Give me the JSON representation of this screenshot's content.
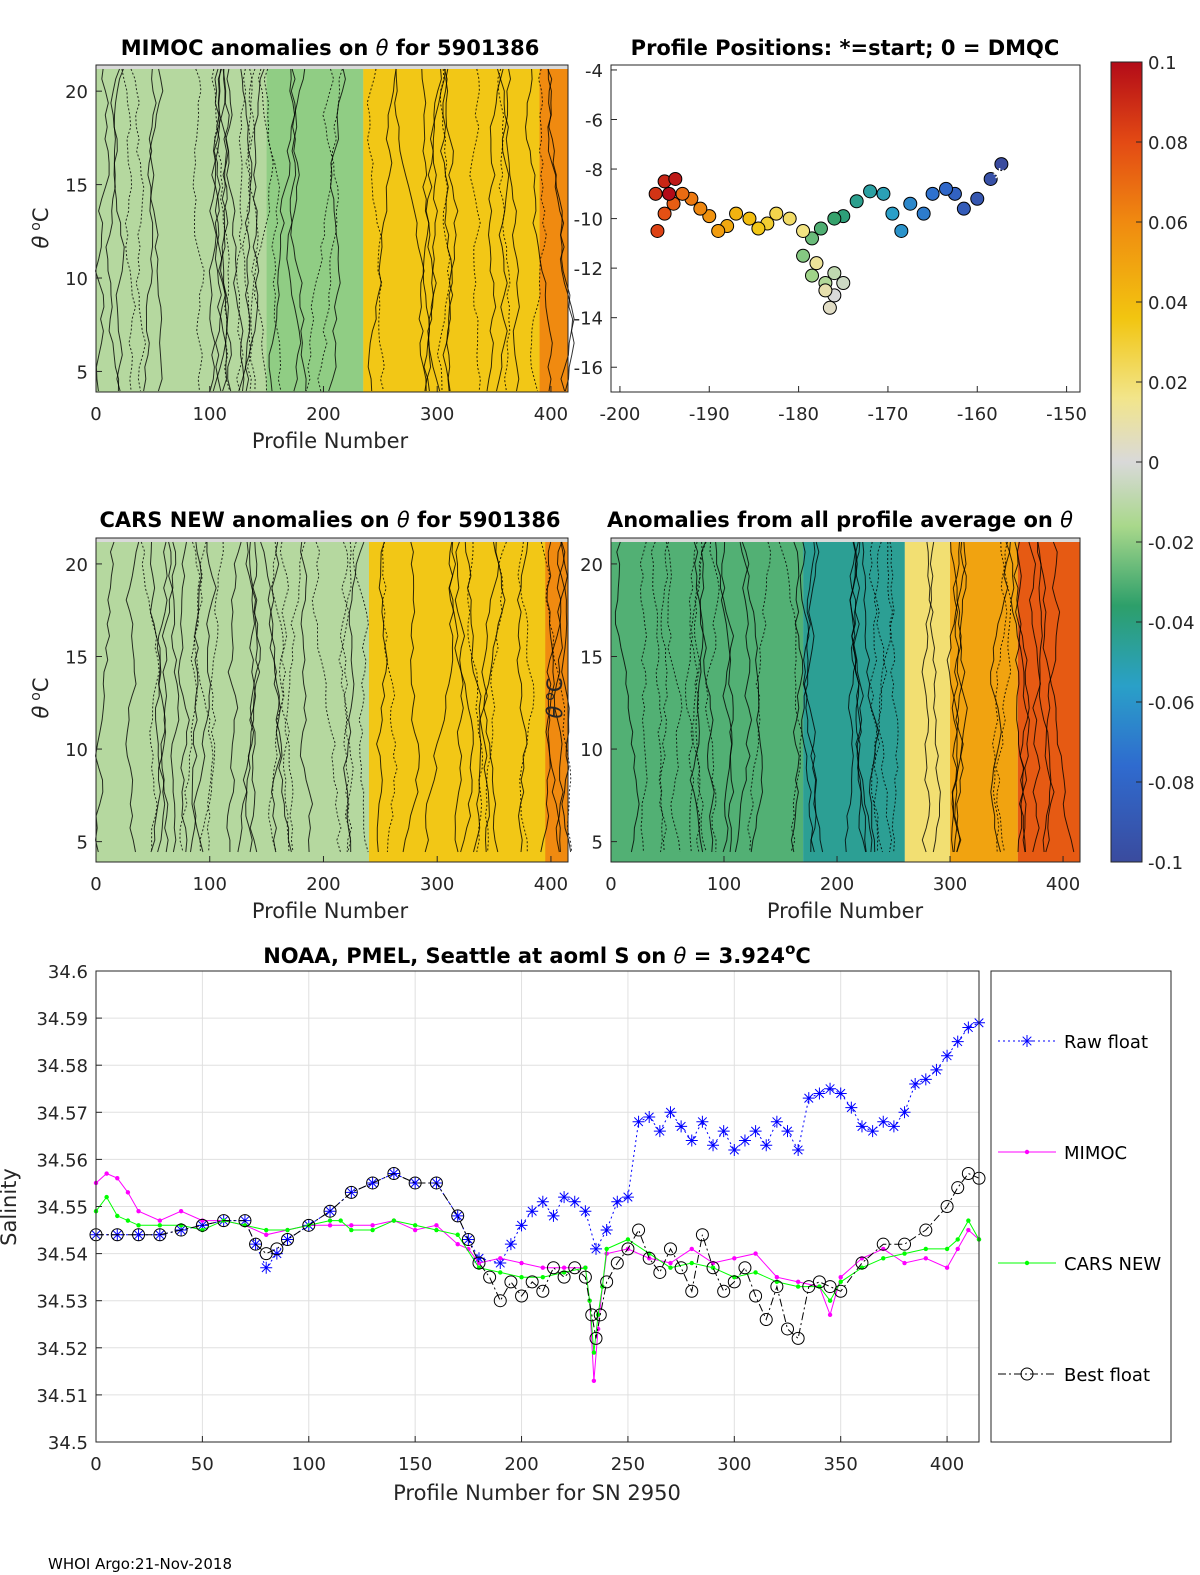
{
  "chart_data": [
    {
      "type": "heatmap",
      "id": "mimoc",
      "title_prefix": "MIMOC anomalies on ",
      "title_theta": "θ",
      "title_suffix": "  for 5901386",
      "xlabel": "Profile Number",
      "ylabel_sym": "θ",
      "ylabel_unit": "C",
      "ylabel_sup": "o",
      "xticks": [
        "0",
        "100",
        "200",
        "300",
        "400"
      ],
      "yticks": [
        "5",
        "10",
        "15",
        "20"
      ],
      "x_tick_values": [
        0,
        100,
        200,
        300,
        400
      ],
      "y_tick_values": [
        5,
        10,
        15,
        20
      ],
      "xlim": [
        0,
        415
      ],
      "ylim": [
        3.9,
        21.4
      ],
      "bands": [
        {
          "x0": 0,
          "x1": 235,
          "v": -0.012
        },
        {
          "x0": 150,
          "x1": 235,
          "v": -0.02
        },
        {
          "x0": 235,
          "x1": 415,
          "v": 0.035
        },
        {
          "x0": 390,
          "x1": 415,
          "v": 0.06
        }
      ]
    },
    {
      "type": "scatter",
      "id": "positions",
      "title": "Profile Positions: *=start; 0 = DMQC",
      "xticks": [
        "-200",
        "-190",
        "-180",
        "-170",
        "-160",
        "-150"
      ],
      "yticks": [
        "-4",
        "-6",
        "-8",
        "-10",
        "-12",
        "-14",
        "-16"
      ],
      "x_tick_values": [
        -200,
        -190,
        -180,
        -170,
        -160,
        -150
      ],
      "y_tick_values": [
        -4,
        -6,
        -8,
        -10,
        -12,
        -14,
        -16
      ],
      "xlim": [
        -201,
        -148.5
      ],
      "ylim": [
        -17,
        -3.8
      ],
      "start": {
        "lon": -157.5,
        "lat": -8.2
      },
      "track": [
        {
          "lon": -157.3,
          "lat": -7.8
        },
        {
          "lon": -158.5,
          "lat": -8.4
        },
        {
          "lon": -160,
          "lat": -9.2
        },
        {
          "lon": -161.5,
          "lat": -9.6
        },
        {
          "lon": -162.5,
          "lat": -9.0
        },
        {
          "lon": -163.5,
          "lat": -8.8
        },
        {
          "lon": -165,
          "lat": -9.0
        },
        {
          "lon": -166,
          "lat": -9.8
        },
        {
          "lon": -167.5,
          "lat": -9.4
        },
        {
          "lon": -168.5,
          "lat": -10.5
        },
        {
          "lon": -169.5,
          "lat": -9.8
        },
        {
          "lon": -170.5,
          "lat": -9.0
        },
        {
          "lon": -172,
          "lat": -8.9
        },
        {
          "lon": -173.5,
          "lat": -9.3
        },
        {
          "lon": -175,
          "lat": -9.9
        },
        {
          "lon": -176,
          "lat": -10.0
        },
        {
          "lon": -177.5,
          "lat": -10.4
        },
        {
          "lon": -178.5,
          "lat": -10.8
        },
        {
          "lon": -179.5,
          "lat": -11.5
        },
        {
          "lon": -178.5,
          "lat": -12.3
        },
        {
          "lon": -177,
          "lat": -12.6
        },
        {
          "lon": -176,
          "lat": -12.2
        },
        {
          "lon": -175,
          "lat": -12.6
        },
        {
          "lon": -176,
          "lat": -13.1
        },
        {
          "lon": -176.5,
          "lat": -13.6
        },
        {
          "lon": -177,
          "lat": -12.9
        },
        {
          "lon": -178,
          "lat": -11.8
        },
        {
          "lon": -179.5,
          "lat": -10.5
        },
        {
          "lon": -181,
          "lat": -10.0
        },
        {
          "lon": -182.5,
          "lat": -9.8
        },
        {
          "lon": -183.5,
          "lat": -10.2
        },
        {
          "lon": -184.5,
          "lat": -10.4
        },
        {
          "lon": -185.5,
          "lat": -10.0
        },
        {
          "lon": -187,
          "lat": -9.8
        },
        {
          "lon": -188,
          "lat": -10.3
        },
        {
          "lon": -189,
          "lat": -10.5
        },
        {
          "lon": -190,
          "lat": -9.9
        },
        {
          "lon": -191,
          "lat": -9.6
        },
        {
          "lon": -192,
          "lat": -9.2
        },
        {
          "lon": -193,
          "lat": -9.0
        },
        {
          "lon": -194,
          "lat": -9.4
        },
        {
          "lon": -195,
          "lat": -9.8
        },
        {
          "lon": -195.8,
          "lat": -10.5
        },
        {
          "lon": -196,
          "lat": -9.0
        },
        {
          "lon": -195,
          "lat": -8.5
        },
        {
          "lon": -193.8,
          "lat": -8.4
        },
        {
          "lon": -194.5,
          "lat": -9.0
        }
      ]
    },
    {
      "type": "heatmap",
      "id": "cars",
      "title_prefix": "CARS NEW anomalies on ",
      "title_theta": "θ",
      "title_suffix": " for 5901386",
      "xlabel": "Profile Number",
      "ylabel_sym": "θ",
      "ylabel_unit": "C",
      "ylabel_sup": "o",
      "xticks": [
        "0",
        "100",
        "200",
        "300",
        "400"
      ],
      "yticks": [
        "5",
        "10",
        "15",
        "20"
      ],
      "x_tick_values": [
        0,
        100,
        200,
        300,
        400
      ],
      "y_tick_values": [
        5,
        10,
        15,
        20
      ],
      "xlim": [
        0,
        415
      ],
      "ylim": [
        3.9,
        21.4
      ],
      "bands": [
        {
          "x0": 0,
          "x1": 240,
          "v": -0.012
        },
        {
          "x0": 240,
          "x1": 415,
          "v": 0.035
        },
        {
          "x0": 395,
          "x1": 415,
          "v": 0.06
        }
      ]
    },
    {
      "type": "heatmap",
      "id": "avg",
      "title_prefix": "Anomalies from all profile average on ",
      "title_theta": "θ",
      "title_suffix": "",
      "xlabel": "Profile Number",
      "ylabel_sym": "θ",
      "ylabel_unit": "C",
      "ylabel_sup": "o",
      "xticks": [
        "0",
        "100",
        "200",
        "300",
        "400"
      ],
      "yticks": [
        "5",
        "10",
        "15",
        "20"
      ],
      "x_tick_values": [
        0,
        100,
        200,
        300,
        400
      ],
      "y_tick_values": [
        5,
        10,
        15,
        20
      ],
      "xlim": [
        0,
        415
      ],
      "ylim": [
        3.9,
        21.4
      ],
      "bands": [
        {
          "x0": 0,
          "x1": 170,
          "v": -0.03
        },
        {
          "x0": 170,
          "x1": 260,
          "v": -0.045
        },
        {
          "x0": 260,
          "x1": 300,
          "v": 0.02
        },
        {
          "x0": 300,
          "x1": 360,
          "v": 0.05
        },
        {
          "x0": 360,
          "x1": 415,
          "v": 0.075
        }
      ]
    },
    {
      "type": "colorbar",
      "ticks": [
        "0.1",
        "0.08",
        "0.06",
        "0.04",
        "0.02",
        "0",
        "-0.02",
        "-0.04",
        "-0.06",
        "-0.08",
        "-0.1"
      ],
      "tick_values": [
        0.1,
        0.08,
        0.06,
        0.04,
        0.02,
        0,
        -0.02,
        -0.04,
        -0.06,
        -0.08,
        -0.1
      ],
      "range": [
        -0.1,
        0.1
      ]
    },
    {
      "type": "line",
      "id": "salinity",
      "title_prefix": "NOAA, PMEL, Seattle at aoml S on ",
      "title_theta": "θ",
      "title_value": " = 3.924",
      "title_sup": "o",
      "title_unit": "C",
      "xlabel": "Profile Number for SN 2950",
      "ylabel": "Salinity",
      "xticks": [
        "0",
        "50",
        "100",
        "150",
        "200",
        "250",
        "300",
        "350",
        "400"
      ],
      "yticks": [
        "34.6",
        "34.59",
        "34.58",
        "34.57",
        "34.56",
        "34.55",
        "34.54",
        "34.53",
        "34.52",
        "34.51",
        "34.5"
      ],
      "x_tick_values": [
        0,
        50,
        100,
        150,
        200,
        250,
        300,
        350,
        400
      ],
      "y_tick_values": [
        34.6,
        34.59,
        34.58,
        34.57,
        34.56,
        34.55,
        34.54,
        34.53,
        34.52,
        34.51,
        34.5
      ],
      "xlim": [
        0,
        415
      ],
      "ylim": [
        34.5,
        34.6
      ],
      "grid": true,
      "legend": "right-outside",
      "series": [
        {
          "name": "Raw float",
          "color": "#0000ff",
          "style": "dotted",
          "marker": "star",
          "x": [
            0,
            10,
            20,
            30,
            40,
            50,
            60,
            70,
            75,
            80,
            85,
            90,
            100,
            110,
            120,
            130,
            140,
            150,
            160,
            170,
            175,
            180,
            190,
            195,
            200,
            205,
            210,
            215,
            220,
            225,
            230,
            235,
            240,
            245,
            250,
            255,
            260,
            265,
            270,
            275,
            280,
            285,
            290,
            295,
            300,
            305,
            310,
            315,
            320,
            325,
            330,
            335,
            340,
            345,
            350,
            355,
            360,
            365,
            370,
            375,
            380,
            385,
            390,
            395,
            400,
            405,
            410,
            415
          ],
          "y": [
            34.544,
            34.544,
            34.544,
            34.544,
            34.545,
            34.546,
            34.547,
            34.547,
            34.542,
            34.537,
            34.54,
            34.543,
            34.546,
            34.549,
            34.553,
            34.555,
            34.557,
            34.555,
            34.555,
            34.548,
            34.543,
            34.539,
            34.538,
            34.542,
            34.546,
            34.549,
            34.551,
            34.548,
            34.552,
            34.551,
            34.549,
            34.541,
            34.545,
            34.551,
            34.552,
            34.568,
            34.569,
            34.566,
            34.57,
            34.567,
            34.564,
            34.568,
            34.563,
            34.566,
            34.562,
            34.564,
            34.566,
            34.563,
            34.568,
            34.566,
            34.562,
            34.573,
            34.574,
            34.575,
            34.574,
            34.571,
            34.567,
            34.566,
            34.568,
            34.567,
            34.57,
            34.576,
            34.577,
            34.579,
            34.582,
            34.585,
            34.588,
            34.589
          ]
        },
        {
          "name": "MIMOC",
          "color": "#ff00ff",
          "style": "solid",
          "marker": "dot",
          "x": [
            0,
            5,
            10,
            15,
            20,
            30,
            40,
            50,
            60,
            70,
            80,
            90,
            100,
            110,
            120,
            130,
            140,
            150,
            160,
            170,
            175,
            180,
            190,
            200,
            210,
            220,
            230,
            232,
            234,
            236,
            238,
            240,
            250,
            260,
            270,
            280,
            290,
            300,
            310,
            320,
            330,
            340,
            345,
            350,
            360,
            370,
            380,
            390,
            400,
            405,
            410,
            415
          ],
          "y": [
            34.555,
            34.557,
            34.556,
            34.553,
            34.549,
            34.547,
            34.549,
            34.547,
            34.547,
            34.546,
            34.544,
            34.545,
            34.546,
            34.546,
            34.546,
            34.546,
            34.547,
            34.545,
            34.546,
            34.542,
            34.541,
            34.538,
            34.539,
            34.538,
            34.537,
            34.537,
            34.537,
            34.53,
            34.513,
            34.524,
            34.533,
            34.54,
            34.541,
            34.539,
            34.538,
            34.541,
            34.538,
            34.539,
            34.54,
            34.535,
            34.534,
            34.533,
            34.527,
            34.535,
            34.539,
            34.541,
            34.538,
            34.539,
            34.537,
            34.541,
            34.545,
            34.543
          ]
        },
        {
          "name": "CARS NEW",
          "color": "#00ff00",
          "style": "solid",
          "marker": "dot",
          "x": [
            0,
            5,
            10,
            15,
            20,
            30,
            40,
            50,
            60,
            70,
            80,
            90,
            100,
            110,
            115,
            120,
            130,
            140,
            150,
            160,
            170,
            180,
            190,
            200,
            210,
            220,
            230,
            232,
            234,
            236,
            238,
            240,
            250,
            260,
            270,
            280,
            290,
            300,
            310,
            320,
            330,
            340,
            345,
            350,
            360,
            370,
            380,
            390,
            400,
            405,
            410,
            415
          ],
          "y": [
            34.549,
            34.552,
            34.548,
            34.547,
            34.546,
            34.546,
            34.546,
            34.545,
            34.547,
            34.546,
            34.545,
            34.545,
            34.546,
            34.547,
            34.547,
            34.545,
            34.545,
            34.547,
            34.546,
            34.545,
            34.544,
            34.537,
            34.536,
            34.535,
            34.535,
            34.536,
            34.537,
            34.53,
            34.519,
            34.527,
            34.533,
            34.541,
            34.543,
            34.54,
            34.537,
            34.538,
            34.537,
            34.535,
            34.536,
            34.534,
            34.533,
            34.533,
            34.53,
            34.534,
            34.537,
            34.539,
            34.54,
            34.541,
            34.541,
            34.543,
            34.547,
            34.543
          ]
        },
        {
          "name": "Best float",
          "color": "#000000",
          "style": "dashdot",
          "marker": "circle",
          "x": [
            0,
            10,
            20,
            30,
            40,
            50,
            60,
            70,
            75,
            80,
            85,
            90,
            100,
            110,
            120,
            130,
            140,
            150,
            160,
            170,
            175,
            180,
            185,
            190,
            195,
            200,
            205,
            210,
            215,
            220,
            225,
            230,
            233,
            235,
            237,
            240,
            245,
            250,
            255,
            260,
            265,
            270,
            275,
            280,
            285,
            290,
            295,
            300,
            305,
            310,
            315,
            320,
            325,
            330,
            335,
            340,
            345,
            350,
            360,
            370,
            380,
            390,
            400,
            405,
            410,
            415
          ],
          "y": [
            34.544,
            34.544,
            34.544,
            34.544,
            34.545,
            34.546,
            34.547,
            34.547,
            34.542,
            34.54,
            34.541,
            34.543,
            34.546,
            34.549,
            34.553,
            34.555,
            34.557,
            34.555,
            34.555,
            34.548,
            34.543,
            34.538,
            34.535,
            34.53,
            34.534,
            34.531,
            34.534,
            34.532,
            34.537,
            34.535,
            34.537,
            34.535,
            34.527,
            34.522,
            34.527,
            34.534,
            34.538,
            34.541,
            34.545,
            34.539,
            34.536,
            34.541,
            34.537,
            34.532,
            34.544,
            34.537,
            34.532,
            34.534,
            34.537,
            34.531,
            34.526,
            34.533,
            34.524,
            34.522,
            34.533,
            34.534,
            34.533,
            34.532,
            34.538,
            34.542,
            34.542,
            34.545,
            34.55,
            34.554,
            34.557,
            34.556
          ]
        }
      ]
    }
  ],
  "footer": "WHOI Argo:21-Nov-2018"
}
